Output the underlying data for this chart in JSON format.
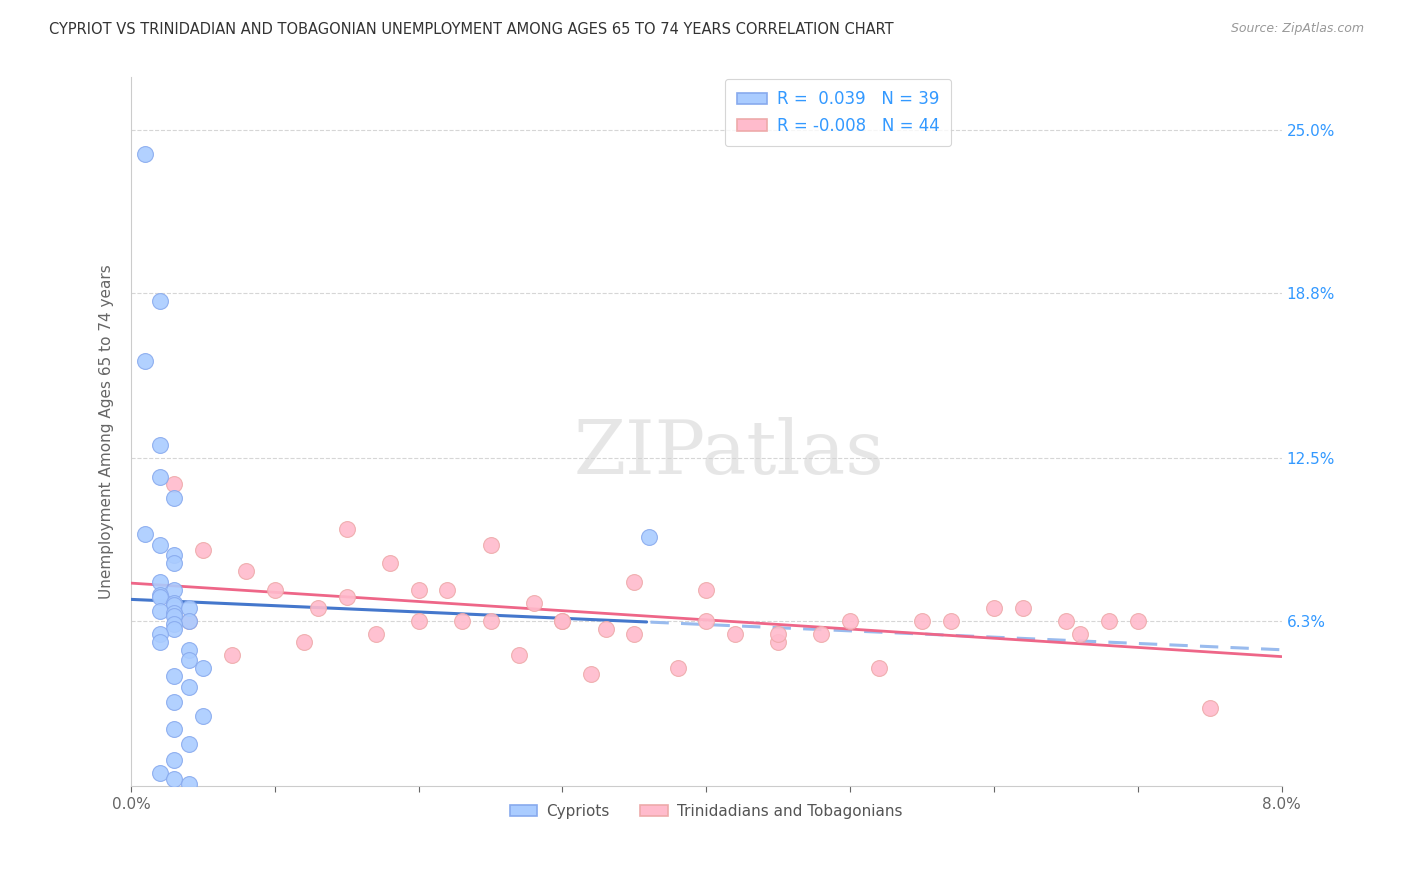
{
  "title": "CYPRIOT VS TRINIDADIAN AND TOBAGONIAN UNEMPLOYMENT AMONG AGES 65 TO 74 YEARS CORRELATION CHART",
  "source": "Source: ZipAtlas.com",
  "ylabel": "Unemployment Among Ages 65 to 74 years",
  "xlim": [
    0.0,
    0.08
  ],
  "ylim": [
    0.0,
    0.27
  ],
  "ytick_positions": [
    0.063,
    0.125,
    0.188,
    0.25
  ],
  "ytick_labels": [
    "6.3%",
    "12.5%",
    "18.8%",
    "25.0%"
  ],
  "background_color": "#ffffff",
  "grid_color": "#cccccc",
  "cypriot_color": "#aaccff",
  "cypriot_edge": "#88aaee",
  "trinidadian_color": "#ffbbcc",
  "trinidadian_edge": "#eeaaaa",
  "cypriot_line_color": "#4477cc",
  "cypriot_dash_color": "#99bbee",
  "trinidadian_line_color": "#ee6688",
  "trinidadian_dash_color": "#ee6688",
  "cypriot_R": 0.039,
  "cypriot_N": 39,
  "trinidadian_R": -0.008,
  "trinidadian_N": 44,
  "legend_label_1": "Cypriots",
  "legend_label_2": "Trinidadians and Tobagonians",
  "watermark": "ZIPatlas",
  "cypriot_x": [
    0.001,
    0.002,
    0.001,
    0.002,
    0.002,
    0.003,
    0.001,
    0.002,
    0.003,
    0.003,
    0.002,
    0.003,
    0.002,
    0.002,
    0.003,
    0.003,
    0.004,
    0.002,
    0.003,
    0.003,
    0.004,
    0.003,
    0.003,
    0.002,
    0.002,
    0.004,
    0.004,
    0.005,
    0.003,
    0.004,
    0.003,
    0.005,
    0.003,
    0.004,
    0.003,
    0.036,
    0.002,
    0.003,
    0.004
  ],
  "cypriot_y": [
    0.241,
    0.185,
    0.162,
    0.13,
    0.118,
    0.11,
    0.096,
    0.092,
    0.088,
    0.085,
    0.078,
    0.075,
    0.073,
    0.072,
    0.07,
    0.069,
    0.068,
    0.067,
    0.066,
    0.065,
    0.063,
    0.062,
    0.06,
    0.058,
    0.055,
    0.052,
    0.048,
    0.045,
    0.042,
    0.038,
    0.032,
    0.027,
    0.022,
    0.016,
    0.01,
    0.095,
    0.005,
    0.003,
    0.001
  ],
  "trinidadian_x": [
    0.003,
    0.005,
    0.008,
    0.01,
    0.013,
    0.015,
    0.018,
    0.02,
    0.022,
    0.025,
    0.028,
    0.03,
    0.033,
    0.035,
    0.015,
    0.04,
    0.025,
    0.045,
    0.02,
    0.05,
    0.035,
    0.055,
    0.03,
    0.06,
    0.04,
    0.065,
    0.045,
    0.068,
    0.012,
    0.017,
    0.023,
    0.027,
    0.032,
    0.038,
    0.042,
    0.048,
    0.052,
    0.057,
    0.062,
    0.066,
    0.07,
    0.075,
    0.004,
    0.007
  ],
  "trinidadian_y": [
    0.115,
    0.09,
    0.082,
    0.075,
    0.068,
    0.098,
    0.085,
    0.063,
    0.075,
    0.092,
    0.07,
    0.063,
    0.06,
    0.058,
    0.072,
    0.063,
    0.063,
    0.055,
    0.075,
    0.063,
    0.078,
    0.063,
    0.063,
    0.068,
    0.075,
    0.063,
    0.058,
    0.063,
    0.055,
    0.058,
    0.063,
    0.05,
    0.043,
    0.045,
    0.058,
    0.058,
    0.045,
    0.063,
    0.068,
    0.058,
    0.063,
    0.03,
    0.063,
    0.05
  ]
}
